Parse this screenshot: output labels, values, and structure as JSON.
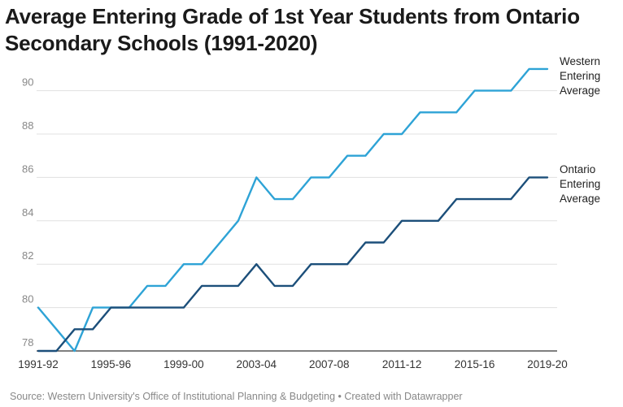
{
  "title": "Average Entering Grade of 1st Year Students from Ontario Secondary Schools (1991-2020)",
  "source": "Source: Western University's Office of Institutional Planning & Budgeting • Created with Datawrapper",
  "chart_data": {
    "type": "line",
    "title": "Average Entering Grade of 1st Year Students from Ontario Secondary Schools (1991-2020)",
    "xlabel": "",
    "ylabel": "",
    "ylim": [
      78,
      91.5
    ],
    "yticks": [
      78,
      80,
      82,
      84,
      86,
      88,
      90
    ],
    "grid": true,
    "x_tick_labels": [
      "1991-92",
      "1995-96",
      "1999-00",
      "2003-04",
      "2007-08",
      "2011-12",
      "2015-16",
      "2019-20"
    ],
    "x_tick_indices": [
      0,
      4,
      8,
      12,
      16,
      20,
      24,
      28
    ],
    "categories": [
      "1991-92",
      "1992-93",
      "1993-94",
      "1994-95",
      "1995-96",
      "1996-97",
      "1997-98",
      "1998-99",
      "1999-00",
      "2000-01",
      "2001-02",
      "2002-03",
      "2003-04",
      "2004-05",
      "2005-06",
      "2006-07",
      "2007-08",
      "2008-09",
      "2009-10",
      "2010-11",
      "2011-12",
      "2012-13",
      "2013-14",
      "2014-15",
      "2015-16",
      "2016-17",
      "2017-18",
      "2018-19",
      "2019-20"
    ],
    "series": [
      {
        "name": "Western Entering Average",
        "label_lines": [
          "Western",
          "Entering",
          "Average"
        ],
        "color": "#2ea3d6",
        "values": [
          80,
          79,
          78,
          80,
          80,
          80,
          81,
          81,
          82,
          82,
          83,
          84,
          86,
          85,
          85,
          86,
          86,
          87,
          87,
          88,
          88,
          89,
          89,
          89,
          90,
          90,
          90,
          91,
          91
        ]
      },
      {
        "name": "Ontario Entering Average",
        "label_lines": [
          "Ontario",
          "Entering",
          "Average"
        ],
        "color": "#1c4f7a",
        "values": [
          78,
          78,
          79,
          79,
          80,
          80,
          80,
          80,
          80,
          81,
          81,
          81,
          82,
          81,
          81,
          82,
          82,
          82,
          83,
          83,
          84,
          84,
          84,
          85,
          85,
          85,
          85,
          86,
          86
        ]
      }
    ]
  },
  "colors": {
    "grid": "#e0e0e0",
    "axis": "#333333",
    "tick_text": "#888888"
  }
}
